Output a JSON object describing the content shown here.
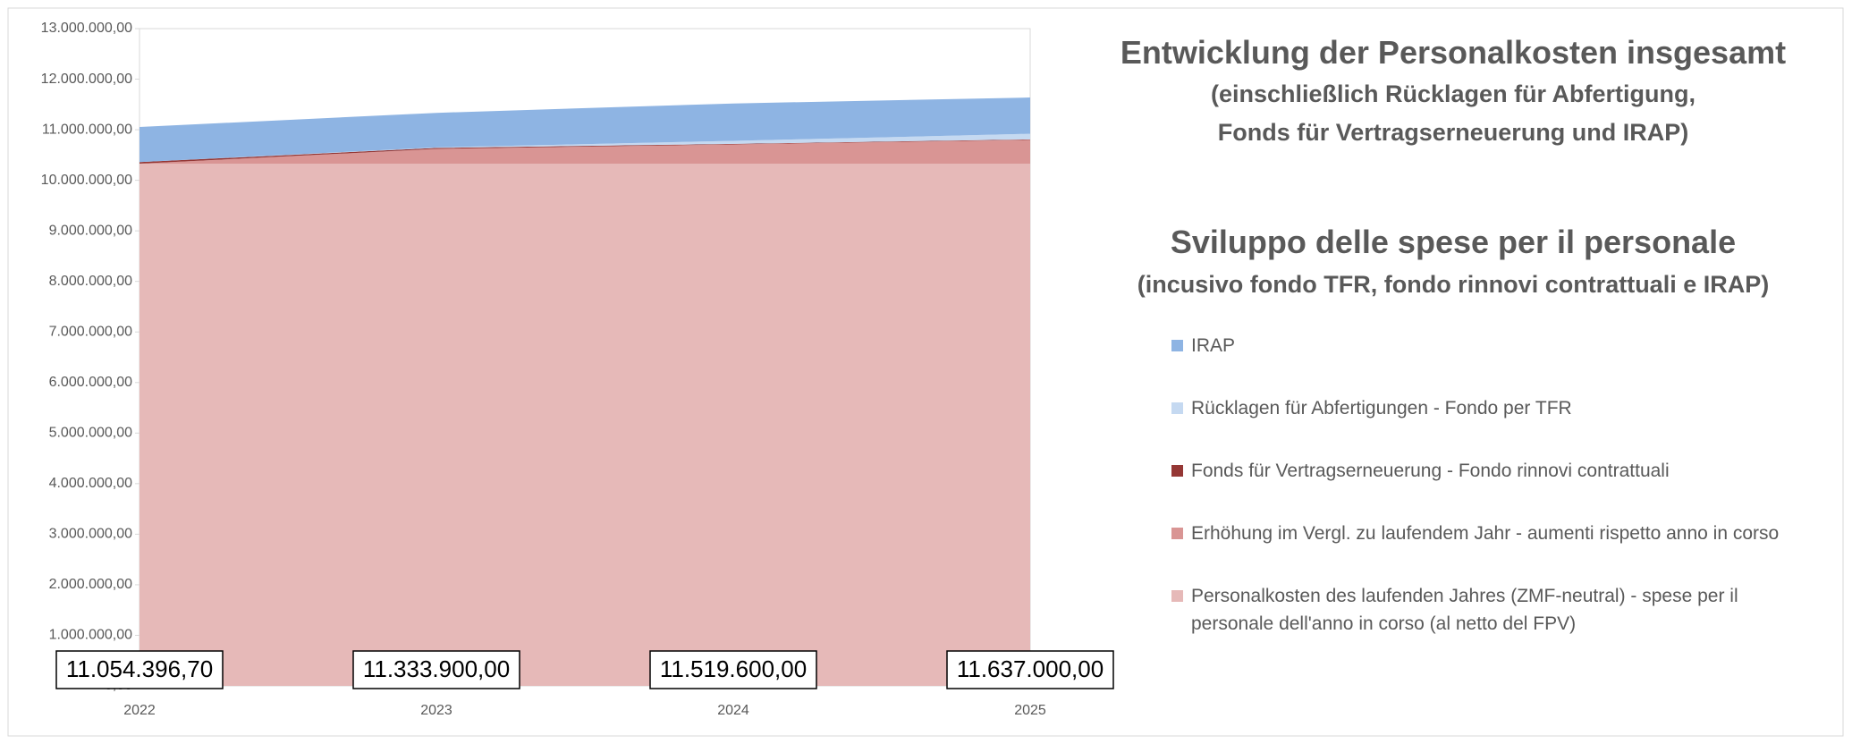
{
  "chart_data": {
    "type": "stacked_area",
    "title": "Entwicklung der Personalkosten insgesamt",
    "subtitle": "(einschließlich Rücklagen für Abfertigung,\nFonds für  Vertragserneuerung und IRAP)",
    "title2": "Sviluppo delle spese per il personale",
    "subtitle2": "(incusivo  fondo TFR, fondo rinnovi contrattuali e IRAP)",
    "categories": [
      "2022",
      "2023",
      "2024",
      "2025"
    ],
    "series": [
      {
        "name": "Personalkosten des laufenden Jahres (ZMF-neutral) - spese per il personale dell'anno in corso (al netto del FPV)",
        "color": "#e6b9b8",
        "values": [
          10330000,
          10330000,
          10330000,
          10330000
        ]
      },
      {
        "name": "Erhöhung im Vergl. zu laufendem Jahr - aumenti rispetto anno in corso",
        "color": "#d99594",
        "values": [
          0,
          290000,
          380000,
          470000
        ]
      },
      {
        "name": "Fonds für Vertragserneuerung - Fondo rinnovi contrattuali",
        "color": "#953735",
        "values": [
          30000,
          20000,
          10000,
          10000
        ]
      },
      {
        "name": "Rücklagen für Abfertigungen - Fondo per TFR",
        "color": "#c5d9f1",
        "values": [
          0,
          10000,
          60000,
          110000
        ]
      },
      {
        "name": "IRAP",
        "color": "#8eb4e3",
        "values": [
          694396.7,
          683900,
          739600,
          717000
        ]
      }
    ],
    "totals": [
      {
        "value": 11054396.7,
        "label": "11.054.396,70"
      },
      {
        "value": 11333900,
        "label": "11.333.900,00"
      },
      {
        "value": 11519600,
        "label": "11.519.600,00"
      },
      {
        "value": 11637000,
        "label": "11.637.000,00"
      }
    ],
    "ylim": [
      0,
      13000000
    ],
    "yticks": [
      {
        "value": 0,
        "label": "0,00"
      },
      {
        "value": 1000000,
        "label": "1.000.000,00"
      },
      {
        "value": 2000000,
        "label": "2.000.000,00"
      },
      {
        "value": 3000000,
        "label": "3.000.000,00"
      },
      {
        "value": 4000000,
        "label": "4.000.000,00"
      },
      {
        "value": 5000000,
        "label": "5.000.000,00"
      },
      {
        "value": 6000000,
        "label": "6.000.000,00"
      },
      {
        "value": 7000000,
        "label": "7.000.000,00"
      },
      {
        "value": 8000000,
        "label": "8.000.000,00"
      },
      {
        "value": 9000000,
        "label": "9.000.000,00"
      },
      {
        "value": 10000000,
        "label": "10.000.000,00"
      },
      {
        "value": 11000000,
        "label": "11.000.000,00"
      },
      {
        "value": 12000000,
        "label": "12.000.000,00"
      },
      {
        "value": 13000000,
        "label": "13.000.000,00"
      }
    ],
    "legend": "right"
  }
}
